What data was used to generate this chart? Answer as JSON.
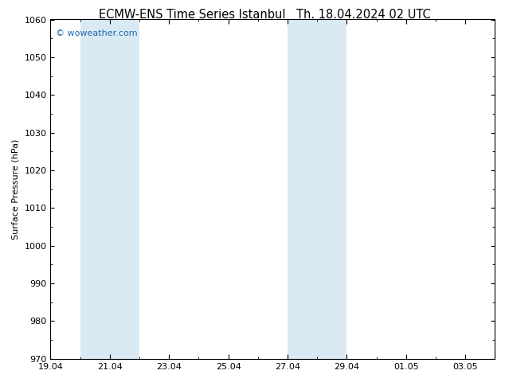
{
  "title": "ECMW-ENS Time Series Istanbul",
  "title_right": "Th. 18.04.2024 02 UTC",
  "ylabel": "Surface Pressure (hPa)",
  "watermark": "© woweather.com",
  "watermark_color": "#1a6aab",
  "background_color": "#ffffff",
  "plot_bg_color": "#ffffff",
  "ylim": [
    970,
    1060
  ],
  "yticks": [
    970,
    980,
    990,
    1000,
    1010,
    1020,
    1030,
    1040,
    1050,
    1060
  ],
  "xlim": [
    0,
    15
  ],
  "x_tick_labels": [
    "19.04",
    "21.04",
    "23.04",
    "25.04",
    "27.04",
    "29.04",
    "01.05",
    "03.05"
  ],
  "x_tick_positions": [
    0,
    2,
    4,
    6,
    8,
    10,
    12,
    14
  ],
  "shaded_bands": [
    {
      "x_start": 1,
      "x_end": 3,
      "color": "#daeaf5",
      "alpha": 1.0
    },
    {
      "x_start": 8,
      "x_end": 10,
      "color": "#daeaf5",
      "alpha": 1.0
    }
  ],
  "title_fontsize": 10.5,
  "tick_fontsize": 8,
  "ylabel_fontsize": 8,
  "watermark_fontsize": 8
}
